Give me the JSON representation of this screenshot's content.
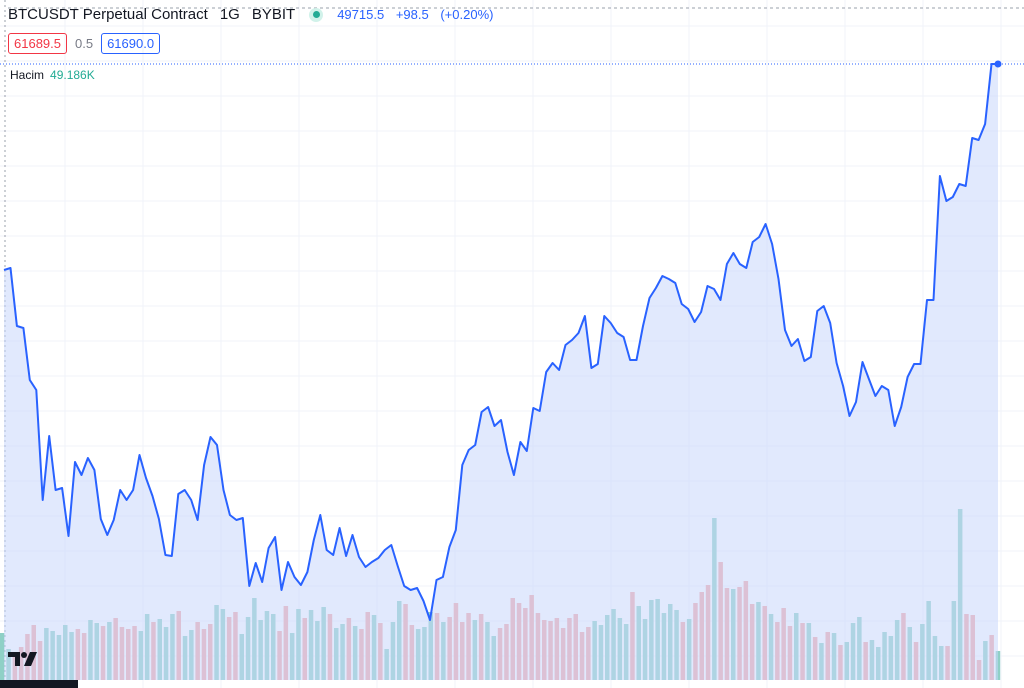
{
  "header": {
    "symbol": "BTCUSDT Perpetual Contract",
    "timeframe": "1G",
    "exchange": "BYBIT",
    "quote_price": "49715.5",
    "quote_change": "+98.5",
    "quote_change_pct": "(+0.20%)"
  },
  "pricebar": {
    "bid": "61689.5",
    "spread": "0.5",
    "ask": "61690.0"
  },
  "volume": {
    "label": "Hacim",
    "value": "49.186K"
  },
  "colors": {
    "line": "#2962ff",
    "fill": "#c9d7fb",
    "vol_up": "#8fd0c6",
    "vol_down": "#f3a7a6",
    "grid": "#f0f3fa",
    "text": "#131722"
  },
  "icons": {
    "logo": "tradingview-logo-icon",
    "status": "market-open-dot-icon"
  },
  "chart_data": {
    "type": "area",
    "price_series": [
      270,
      268,
      326,
      328,
      380,
      390,
      500,
      436,
      490,
      488,
      536,
      462,
      475,
      458,
      470,
      519,
      535,
      520,
      490,
      500,
      490,
      455,
      478,
      496,
      519,
      555,
      556,
      494,
      490,
      500,
      520,
      465,
      437,
      445,
      490,
      515,
      520,
      518,
      586,
      563,
      582,
      548,
      537,
      590,
      562,
      577,
      585,
      572,
      540,
      515,
      550,
      555,
      528,
      556,
      535,
      557,
      567,
      562,
      558,
      550,
      545,
      566,
      586,
      590,
      588,
      601,
      620,
      580,
      577,
      547,
      530,
      465,
      450,
      445,
      412,
      407,
      426,
      420,
      452,
      475,
      442,
      451,
      408,
      411,
      372,
      363,
      370,
      345,
      340,
      333,
      316,
      368,
      364,
      316,
      323,
      333,
      337,
      360,
      360,
      326,
      298,
      288,
      276,
      279,
      283,
      304,
      309,
      322,
      312,
      286,
      289,
      300,
      264,
      253,
      264,
      268,
      242,
      237,
      224,
      244,
      279,
      330,
      346,
      339,
      361,
      357,
      311,
      306,
      323,
      363,
      386,
      416,
      402,
      362,
      379,
      396,
      386,
      390,
      426,
      407,
      377,
      364,
      364,
      300,
      300,
      176,
      201,
      197,
      184,
      186,
      138,
      140,
      124,
      64,
      64
    ],
    "volume_series": [
      633,
      649,
      654,
      647,
      634,
      625,
      641,
      628,
      631,
      635,
      625,
      632,
      629,
      633,
      620,
      623,
      626,
      622,
      618,
      627,
      629,
      626,
      631,
      614,
      622,
      619,
      627,
      614,
      611,
      636,
      630,
      622,
      629,
      624,
      605,
      609,
      617,
      612,
      634,
      617,
      598,
      620,
      611,
      614,
      631,
      606,
      633,
      609,
      618,
      610,
      621,
      607,
      614,
      628,
      624,
      618,
      626,
      629,
      612,
      615,
      623,
      649,
      622,
      601,
      604,
      625,
      629,
      627,
      612,
      613,
      622,
      617,
      603,
      622,
      613,
      620,
      614,
      622,
      636,
      628,
      624,
      598,
      603,
      608,
      595,
      613,
      620,
      621,
      618,
      628,
      618,
      614,
      632,
      627,
      621,
      625,
      615,
      609,
      618,
      624,
      592,
      606,
      619,
      600,
      599,
      613,
      604,
      610,
      622,
      619,
      603,
      592,
      585,
      518,
      562,
      588,
      589,
      587,
      581,
      604,
      602,
      606,
      614,
      622,
      608,
      626,
      613,
      623,
      623,
      637,
      643,
      632,
      633,
      645,
      642,
      623,
      617,
      642,
      640,
      647,
      632,
      636,
      620,
      613,
      627,
      642,
      624,
      601,
      636,
      646,
      646,
      601,
      509,
      614,
      615,
      660,
      641,
      635,
      651
    ],
    "volume_up_flags": [
      1,
      1,
      0,
      0,
      0,
      0,
      0,
      1,
      1,
      1,
      1,
      1,
      0,
      0,
      1,
      1,
      0,
      1,
      0,
      0,
      0,
      0,
      1,
      1,
      0,
      1,
      1,
      1,
      0,
      1,
      1,
      0,
      0,
      0,
      1,
      1,
      0,
      0,
      1,
      1,
      1,
      1,
      1,
      1,
      0,
      0,
      1,
      1,
      0,
      1,
      1,
      1,
      0,
      1,
      1,
      0,
      1,
      0,
      0,
      1,
      0,
      1,
      1,
      1,
      0,
      0,
      1,
      1,
      1,
      0,
      1,
      0,
      0,
      0,
      0,
      1,
      0,
      1,
      1,
      0,
      0,
      0,
      0,
      0,
      0,
      0,
      0,
      0,
      0,
      0,
      0,
      0,
      0,
      0,
      1,
      1,
      1,
      1,
      1,
      1,
      0,
      1,
      1,
      1,
      1,
      1,
      1,
      1,
      0,
      1,
      0,
      0,
      0,
      1,
      0,
      0,
      1,
      0,
      0,
      0,
      1,
      0,
      1,
      0,
      0,
      0,
      1,
      0,
      1,
      0,
      1,
      0,
      1,
      0,
      1,
      1,
      1,
      0,
      1,
      1,
      1,
      1,
      1,
      0,
      1,
      0,
      1,
      1,
      1,
      1,
      0,
      1,
      1,
      0,
      0,
      0,
      1,
      0,
      1
    ]
  }
}
